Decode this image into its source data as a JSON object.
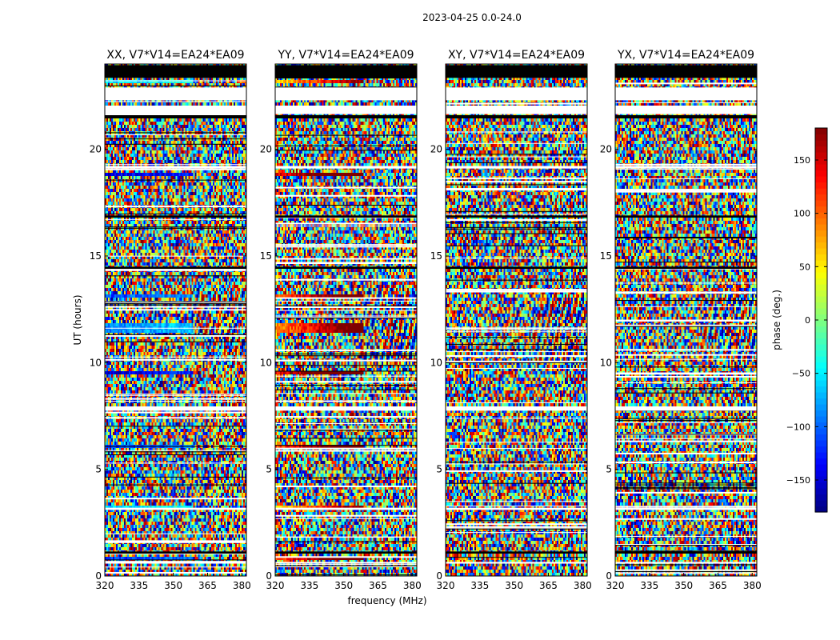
{
  "figure_title": "2023-04-25 0.0-24.0",
  "chart_data": {
    "type": "heatmap",
    "suptitle": "2023-04-25 0.0-24.0",
    "xlabel": "frequency (MHz)",
    "ylabel": "UT (hours)",
    "xlim": [
      320,
      382
    ],
    "ylim": [
      0,
      24
    ],
    "xticks": [
      320,
      335,
      350,
      365,
      380
    ],
    "yticks": [
      0,
      5,
      10,
      15,
      20
    ],
    "colorbar": {
      "label": "phase (deg.)",
      "range": [
        -180,
        180
      ],
      "ticks": [
        -150,
        -100,
        -50,
        0,
        50,
        100,
        150
      ],
      "tick_labels": [
        "−150",
        "−100",
        "−50",
        "0",
        "50",
        "100",
        "150"
      ],
      "colormap": [
        "#00007f",
        "#0000ff",
        "#007fff",
        "#00ffff",
        "#7fff7f",
        "#ffff00",
        "#ff7f00",
        "#ff0000",
        "#7f0000"
      ]
    },
    "panels": [
      {
        "title": "XX, V7*V14=EA24*EA09",
        "pol": "XX"
      },
      {
        "title": "YY, V7*V14=EA24*EA09",
        "pol": "YY"
      },
      {
        "title": "XY, V7*V14=EA24*EA09",
        "pol": "XY"
      },
      {
        "title": "YX, V7*V14=EA24*EA09",
        "pol": "YX"
      }
    ],
    "blank_ut_ranges": [
      [
        0.58,
        0.66
      ],
      [
        22.3,
        22.9
      ],
      [
        21.65,
        22.05
      ],
      [
        7.75,
        7.95
      ],
      [
        19.1,
        19.22
      ],
      [
        3.1,
        3.2
      ]
    ],
    "black_ut_ranges": [
      [
        23.35,
        23.95
      ],
      [
        21.45,
        21.6
      ],
      [
        14.4,
        14.5
      ],
      [
        1.05,
        1.15
      ],
      [
        16.8,
        16.9
      ]
    ],
    "coherent_bands": [
      {
        "ut": [
          23.1,
          23.22
        ],
        "phase": -60
      },
      {
        "ut": [
          18.75,
          18.9
        ],
        "phase": -150
      },
      {
        "ut": [
          13.0,
          13.2
        ],
        "phase": -110
      },
      {
        "ut": [
          11.4,
          11.8
        ],
        "phase": -90
      },
      {
        "ut": [
          9.45,
          9.6
        ],
        "phase": -150
      },
      {
        "ut": [
          6.0,
          6.1
        ],
        "phase": -120
      },
      {
        "ut": [
          3.1,
          3.3
        ],
        "phase": -60
      },
      {
        "ut": [
          0.75,
          0.85
        ],
        "phase": -120
      }
    ]
  }
}
